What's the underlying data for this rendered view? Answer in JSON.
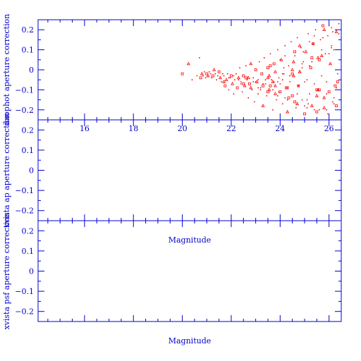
{
  "panels": [
    {
      "ylabel": "daophot aperture correction",
      "xlabel": "",
      "x_ticklabels": [
        "16",
        "18",
        "20",
        "22",
        "24",
        "26"
      ]
    },
    {
      "ylabel": "xvista ap aperture correction",
      "xlabel": "Magnitude",
      "x_ticklabels": []
    },
    {
      "ylabel": "xvista psf aperture correction",
      "xlabel": "Magnitude",
      "x_ticklabels": []
    }
  ],
  "y_ticklabels": [
    "0.2",
    "0.1",
    "0",
    "−0.1",
    "−0.2"
  ],
  "colors": {
    "axes": "#0000cc",
    "points": "#ff0000"
  },
  "chart_data": [
    {
      "type": "scatter",
      "title": "",
      "xlabel": "",
      "ylabel": "daophot aperture correction",
      "xlim": [
        14.1,
        26.5
      ],
      "ylim": [
        -0.25,
        0.25
      ],
      "x_ticks": [
        16,
        18,
        20,
        22,
        24,
        26
      ],
      "y_ticks": [
        -0.2,
        -0.1,
        0,
        0.1,
        0.2
      ],
      "grid": false,
      "series": [
        {
          "marker": "mixed small open squares, triangles and dots",
          "x": [
            20.0,
            20.25,
            20.4,
            20.6,
            20.7,
            20.75,
            20.8,
            20.85,
            20.9,
            20.95,
            21.0,
            21.05,
            21.1,
            21.15,
            21.2,
            21.25,
            21.3,
            21.35,
            21.4,
            21.45,
            21.5,
            21.55,
            21.6,
            21.65,
            21.7,
            21.75,
            21.8,
            21.85,
            21.9,
            21.95,
            22.0,
            22.05,
            22.1,
            22.15,
            22.2,
            22.25,
            22.3,
            22.35,
            22.4,
            22.45,
            22.5,
            22.55,
            22.6,
            22.65,
            22.7,
            22.75,
            22.8,
            22.85,
            22.9,
            22.95,
            23.0,
            23.05,
            23.1,
            23.15,
            23.2,
            23.25,
            23.3,
            23.35,
            23.4,
            23.45,
            23.5,
            23.55,
            23.6,
            23.65,
            23.7,
            23.75,
            23.8,
            23.85,
            23.9,
            23.95,
            24.0,
            24.05,
            24.1,
            24.15,
            24.2,
            24.25,
            24.3,
            24.35,
            24.4,
            24.45,
            24.5,
            24.55,
            24.6,
            24.65,
            24.7,
            24.75,
            24.8,
            24.85,
            24.9,
            24.95,
            25.0,
            25.05,
            25.1,
            25.15,
            25.2,
            25.25,
            25.3,
            25.35,
            25.4,
            25.45,
            25.5,
            25.55,
            25.6,
            25.65,
            25.7,
            25.75,
            25.8,
            25.85,
            25.9,
            25.95,
            26.0,
            26.05,
            26.1,
            26.15,
            26.2,
            26.25,
            26.3,
            26.35,
            26.4,
            22.4,
            22.6,
            22.8,
            23.0,
            23.2,
            23.4,
            23.6,
            23.8,
            24.0,
            24.2,
            24.4,
            24.6,
            24.8,
            25.0,
            25.2,
            25.4,
            25.6,
            25.8,
            26.0,
            26.2,
            23.1,
            23.3,
            23.5,
            23.7,
            23.9,
            24.1,
            24.3,
            24.5,
            24.7,
            24.9,
            25.1,
            25.3,
            25.5,
            25.7,
            25.9,
            26.1,
            26.3,
            23.55,
            23.75,
            23.95,
            24.15,
            24.35,
            24.55,
            24.75,
            24.95,
            25.15,
            25.35,
            25.55,
            25.75,
            25.95,
            26.15,
            26.35,
            21.7,
            21.9,
            22.1,
            22.3,
            22.5,
            22.7,
            22.9,
            23.1,
            23.3,
            23.5,
            23.7,
            23.9,
            24.1,
            24.3,
            24.5,
            24.7,
            24.9,
            25.1,
            25.3,
            25.5,
            25.7,
            25.9,
            26.1,
            26.3,
            23.6,
            23.8,
            24.0,
            24.2,
            24.4,
            24.6,
            24.8,
            25.0,
            25.2,
            25.4,
            25.6,
            25.8,
            26.0,
            26.2,
            26.4
          ],
          "y": [
            -0.02,
            0.03,
            -0.05,
            -0.03,
            0.06,
            -0.04,
            -0.02,
            -0.03,
            -0.01,
            -0.04,
            -0.02,
            -0.03,
            -0.01,
            -0.02,
            -0.04,
            -0.03,
            0.0,
            -0.02,
            -0.05,
            -0.03,
            -0.01,
            -0.04,
            -0.06,
            -0.02,
            -0.03,
            -0.08,
            -0.05,
            -0.02,
            -0.1,
            -0.04,
            -0.03,
            -0.07,
            -0.12,
            -0.05,
            -0.02,
            -0.09,
            -0.04,
            0.01,
            -0.06,
            -0.11,
            -0.03,
            -0.08,
            0.02,
            -0.05,
            -0.14,
            -0.07,
            0.03,
            -0.1,
            -0.04,
            -0.16,
            0.0,
            -0.06,
            -0.12,
            0.04,
            -0.09,
            -0.02,
            -0.18,
            0.06,
            -0.07,
            -0.13,
            0.01,
            -0.1,
            0.08,
            -0.05,
            -0.2,
            0.03,
            -0.08,
            -0.15,
            0.1,
            -0.04,
            -0.11,
            0.05,
            -0.17,
            -0.02,
            0.12,
            -0.09,
            -0.21,
            0.02,
            -0.06,
            0.14,
            -0.13,
            -0.03,
            0.07,
            -0.19,
            0.16,
            -0.08,
            -0.01,
            0.11,
            -0.15,
            0.04,
            -0.22,
            0.09,
            -0.05,
            0.18,
            -0.12,
            0.01,
            -0.18,
            0.13,
            -0.07,
            0.2,
            -0.1,
            0.06,
            -0.2,
            0.15,
            -0.03,
            0.22,
            -0.14,
            0.08,
            -0.06,
            0.17,
            -0.11,
            0.03,
            0.21,
            -0.16,
            0.1,
            -0.08,
            0.19,
            -0.02,
            0.23,
            -0.07,
            -0.04,
            -0.09,
            -0.06,
            -0.1,
            -0.05,
            -0.08,
            -0.12,
            -0.07,
            -0.14,
            -0.03,
            -0.16,
            -0.01,
            -0.18,
            0.02,
            -0.2,
            0.05,
            -0.19,
            0.08,
            -0.17,
            -0.05,
            -0.08,
            -0.04,
            -0.1,
            -0.06,
            -0.02,
            -0.09,
            0.0,
            -0.12,
            0.03,
            -0.15,
            0.06,
            -0.13,
            0.1,
            -0.2,
            0.12,
            -0.18,
            -0.03,
            -0.06,
            -0.11,
            0.01,
            -0.14,
            0.04,
            -0.08,
            0.09,
            -0.17,
            0.13,
            -0.1,
            0.16,
            -0.22,
            0.19,
            -0.06,
            -0.06,
            -0.04,
            -0.03,
            -0.05,
            -0.07,
            -0.04,
            -0.06,
            -0.09,
            -0.07,
            -0.11,
            -0.06,
            -0.13,
            -0.05,
            -0.15,
            -0.02,
            -0.17,
            0.01,
            -0.19,
            0.04,
            -0.21,
            0.07,
            -0.12,
            0.11,
            -0.09,
            0.02,
            -0.01,
            0.05,
            0.07,
            -0.03,
            0.09,
            0.12,
            -0.06,
            0.14,
            0.17,
            -0.1,
            0.2,
            0.22,
            -0.14,
            0.18
          ]
        }
      ]
    },
    {
      "type": "scatter",
      "title": "",
      "xlabel": "Magnitude",
      "ylabel": "xvista ap aperture correction",
      "xlim": [
        14.1,
        26.5
      ],
      "ylim": [
        -0.25,
        0.25
      ],
      "grid": false,
      "series": []
    },
    {
      "type": "scatter",
      "title": "",
      "xlabel": "Magnitude",
      "ylabel": "xvista psf aperture correction",
      "xlim": [
        14.1,
        26.5
      ],
      "ylim": [
        -0.25,
        0.25
      ],
      "grid": false,
      "series": []
    }
  ]
}
